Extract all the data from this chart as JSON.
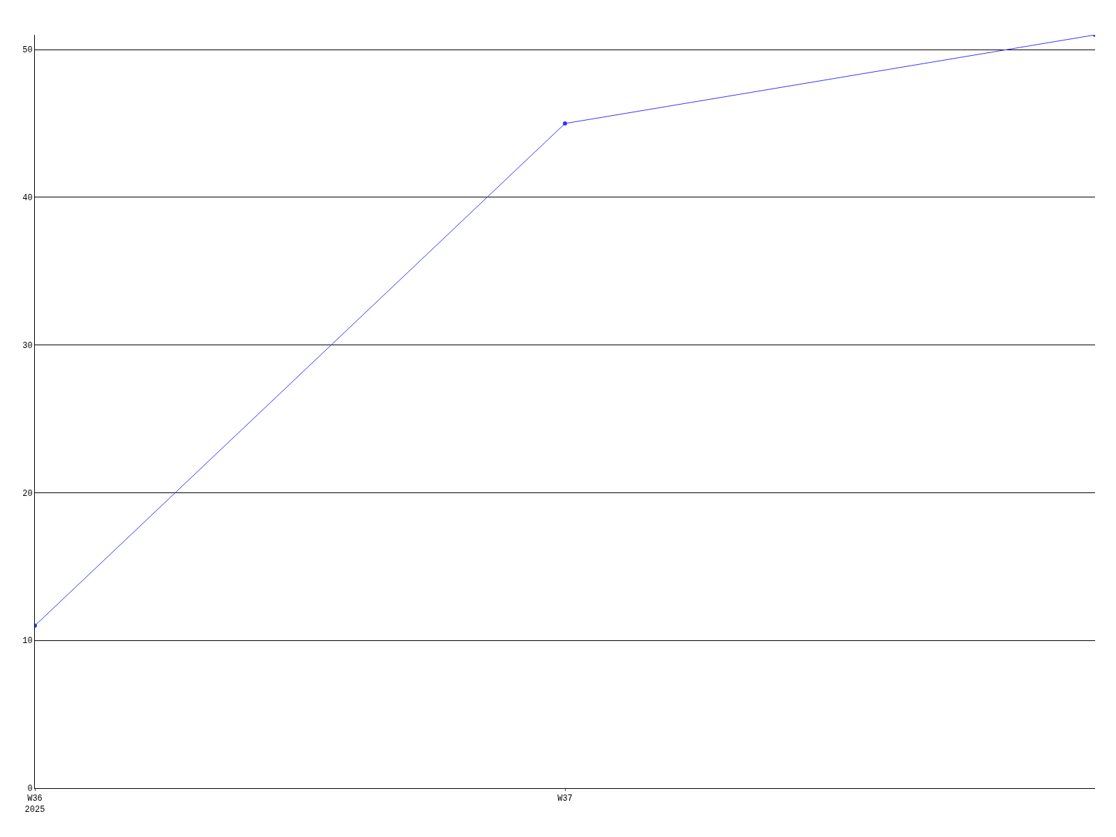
{
  "chart_data": {
    "type": "line",
    "categories": [
      "W36\n2025",
      "W37",
      null
    ],
    "series": [
      {
        "color": "#3333ff",
        "values": [
          11,
          45,
          51
        ]
      }
    ],
    "ylim": [
      0,
      51
    ],
    "yticks": [
      0,
      10,
      20,
      30,
      40,
      50
    ],
    "grid": "y",
    "marker": "circle",
    "line_style": "solid"
  }
}
